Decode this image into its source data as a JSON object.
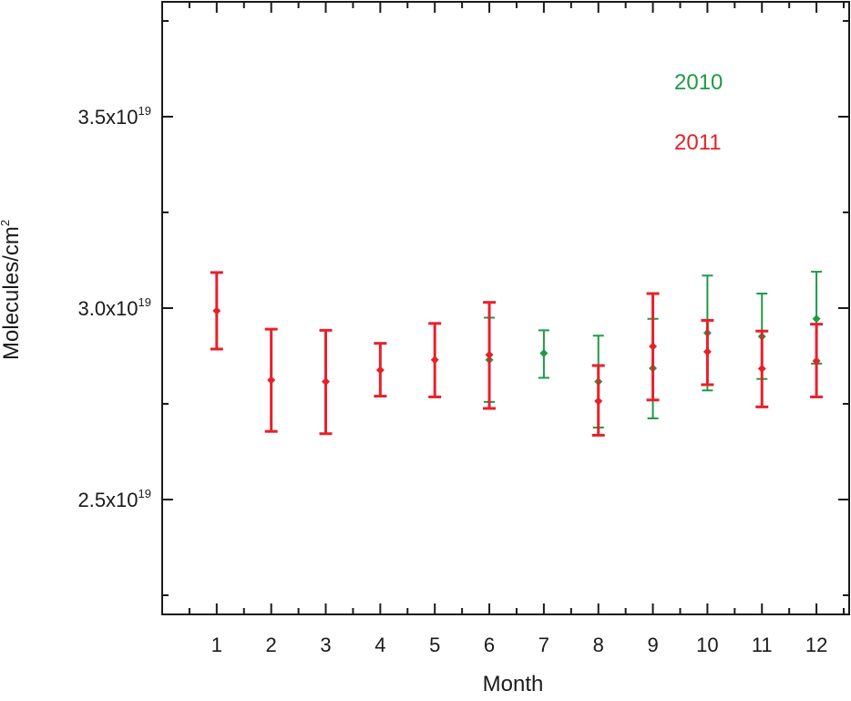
{
  "chart_data": {
    "type": "scatter",
    "title": "",
    "xlabel": "Month",
    "ylabel": "Molecules/cm",
    "ylabel_superscript": "2",
    "xlim": [
      0.0,
      12.6
    ],
    "ylim": [
      2.2e+19,
      3.8e+19
    ],
    "x_ticks": [
      1,
      2,
      3,
      4,
      5,
      6,
      7,
      8,
      9,
      10,
      11,
      12
    ],
    "y_ticks": [
      {
        "value": 2.5e+19,
        "mantissa": "2.5",
        "base": "x10",
        "exponent": "19"
      },
      {
        "value": 3e+19,
        "mantissa": "3.0",
        "base": "x10",
        "exponent": "19"
      },
      {
        "value": 3.5e+19,
        "mantissa": "3.5",
        "base": "x10",
        "exponent": "19"
      }
    ],
    "grid": false,
    "legend_position": "top-right",
    "series": [
      {
        "name": "2010",
        "color": "#1f9a45",
        "points": [
          {
            "x": 6,
            "y": 2.865e+19,
            "low": 2.755e+19,
            "high": 2.975e+19
          },
          {
            "x": 7,
            "y": 2.882e+19,
            "low": 2.818e+19,
            "high": 2.942e+19
          },
          {
            "x": 8,
            "y": 2.808e+19,
            "low": 2.688e+19,
            "high": 2.928e+19
          },
          {
            "x": 9,
            "y": 2.843e+19,
            "low": 2.712e+19,
            "high": 2.972e+19
          },
          {
            "x": 10,
            "y": 2.935e+19,
            "low": 2.785e+19,
            "high": 3.085e+19
          },
          {
            "x": 11,
            "y": 2.926e+19,
            "low": 2.815e+19,
            "high": 3.038e+19
          },
          {
            "x": 12,
            "y": 2.972e+19,
            "low": 2.855e+19,
            "high": 3.095e+19
          }
        ]
      },
      {
        "name": "2011",
        "color": "#e8202a",
        "points": [
          {
            "x": 1,
            "y": 2.993e+19,
            "low": 2.893e+19,
            "high": 3.093e+19
          },
          {
            "x": 2,
            "y": 2.812e+19,
            "low": 2.678e+19,
            "high": 2.945e+19
          },
          {
            "x": 3,
            "y": 2.808e+19,
            "low": 2.672e+19,
            "high": 2.942e+19
          },
          {
            "x": 4,
            "y": 2.838e+19,
            "low": 2.77e+19,
            "high": 2.908e+19
          },
          {
            "x": 5,
            "y": 2.865e+19,
            "low": 2.768e+19,
            "high": 2.96e+19
          },
          {
            "x": 6,
            "y": 2.878e+19,
            "low": 2.738e+19,
            "high": 3.015e+19
          },
          {
            "x": 8,
            "y": 2.757e+19,
            "low": 2.668e+19,
            "high": 2.85e+19
          },
          {
            "x": 9,
            "y": 2.9e+19,
            "low": 2.76e+19,
            "high": 3.038e+19
          },
          {
            "x": 10,
            "y": 2.886e+19,
            "low": 2.8e+19,
            "high": 2.968e+19
          },
          {
            "x": 11,
            "y": 2.842e+19,
            "low": 2.742e+19,
            "high": 2.94e+19
          },
          {
            "x": 12,
            "y": 2.862e+19,
            "low": 2.768e+19,
            "high": 2.958e+19
          }
        ]
      }
    ]
  }
}
